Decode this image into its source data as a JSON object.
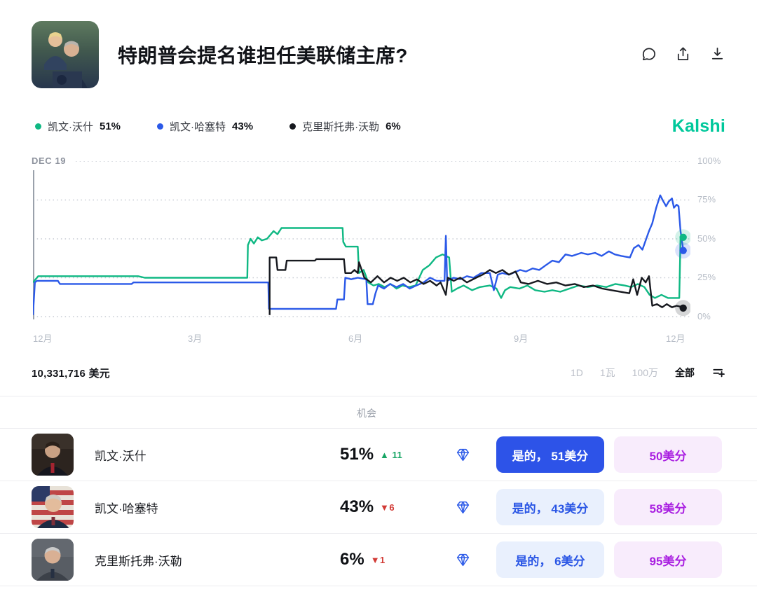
{
  "header": {
    "title": "特朗普会提名谁担任美联储主席?"
  },
  "brand": {
    "name": "Kalshi",
    "color": "#00c89b"
  },
  "legend": {
    "items": [
      {
        "name": "凯文·沃什",
        "value": "51%",
        "color": "#0fb883"
      },
      {
        "name": "凯文·哈塞特",
        "value": "43%",
        "color": "#2b59e8"
      },
      {
        "name": "克里斯托弗·沃勒",
        "value": "6%",
        "color": "#17191f"
      }
    ]
  },
  "chart_data": {
    "type": "line",
    "annotation": "DEC 19",
    "grid": "dotted horizontal",
    "legend_position": "top-left",
    "ylim": [
      0,
      100
    ],
    "y_ticks": [
      {
        "label": "0%",
        "value": 0
      },
      {
        "label": "25%",
        "value": 25
      },
      {
        "label": "50%",
        "value": 50
      },
      {
        "label": "75%",
        "value": 75
      },
      {
        "label": "100%",
        "value": 100
      }
    ],
    "x_ticks": [
      {
        "label": "12月",
        "pos": 0.4
      },
      {
        "label": "3月",
        "pos": 24.6
      },
      {
        "label": "6月",
        "pos": 49
      },
      {
        "label": "9月",
        "pos": 74.2
      },
      {
        "label": "12月",
        "pos": 97.5
      }
    ],
    "series": [
      {
        "name": "凯文·沃什",
        "color": "#0fb883",
        "points": [
          [
            0,
            22
          ],
          [
            0.8,
            26
          ],
          [
            8,
            26
          ],
          [
            16,
            26
          ],
          [
            17,
            25
          ],
          [
            24.6,
            25
          ],
          [
            28,
            25
          ],
          [
            32.6,
            25
          ],
          [
            32.7,
            46
          ],
          [
            33.1,
            50
          ],
          [
            33.6,
            47
          ],
          [
            34.2,
            51
          ],
          [
            34.8,
            49
          ],
          [
            35.6,
            50
          ],
          [
            36.6,
            55
          ],
          [
            37.2,
            53
          ],
          [
            37.8,
            57
          ],
          [
            40,
            57
          ],
          [
            43,
            57
          ],
          [
            46,
            57
          ],
          [
            47.1,
            57
          ],
          [
            47.2,
            48
          ],
          [
            47.6,
            45
          ],
          [
            49.4,
            45
          ],
          [
            49.6,
            28
          ],
          [
            50.3,
            30
          ],
          [
            51,
            22
          ],
          [
            51.8,
            20
          ],
          [
            52.6,
            21
          ],
          [
            53.5,
            19
          ],
          [
            54.4,
            21
          ],
          [
            55.3,
            18
          ],
          [
            56.2,
            20
          ],
          [
            57.2,
            19
          ],
          [
            58.2,
            20
          ],
          [
            59.3,
            30
          ],
          [
            60.3,
            33
          ],
          [
            61.3,
            38
          ],
          [
            62.3,
            40
          ],
          [
            63.3,
            38
          ],
          [
            63.7,
            16
          ],
          [
            64.5,
            18
          ],
          [
            65.5,
            20
          ],
          [
            66.8,
            17
          ],
          [
            68,
            19
          ],
          [
            69.5,
            20
          ],
          [
            70.5,
            18
          ],
          [
            71.2,
            12
          ],
          [
            71.8,
            17
          ],
          [
            72.6,
            19
          ],
          [
            74,
            18
          ],
          [
            75.2,
            20
          ],
          [
            76.4,
            17
          ],
          [
            77.8,
            16
          ],
          [
            79,
            17
          ],
          [
            80.2,
            16
          ],
          [
            81.6,
            18
          ],
          [
            83,
            20
          ],
          [
            84.4,
            19
          ],
          [
            85.8,
            20
          ],
          [
            87.2,
            19
          ],
          [
            88.6,
            21
          ],
          [
            90,
            20
          ],
          [
            91,
            19
          ],
          [
            92,
            21
          ],
          [
            93,
            19
          ],
          [
            93.8,
            14
          ],
          [
            94.6,
            12
          ],
          [
            95.6,
            14
          ],
          [
            96.6,
            12
          ],
          [
            98.3,
            12
          ],
          [
            98.5,
            51
          ],
          [
            98.9,
            51
          ]
        ]
      },
      {
        "name": "凯文·哈塞特",
        "color": "#2b59e8",
        "points": [
          [
            0,
            1
          ],
          [
            0.3,
            22
          ],
          [
            0.6,
            23
          ],
          [
            3.8,
            23
          ],
          [
            4.1,
            21
          ],
          [
            15,
            21
          ],
          [
            15.3,
            22
          ],
          [
            24.6,
            22
          ],
          [
            32,
            22
          ],
          [
            35.8,
            22
          ],
          [
            35.9,
            5
          ],
          [
            40,
            5
          ],
          [
            44,
            5
          ],
          [
            46.1,
            5
          ],
          [
            46.3,
            11
          ],
          [
            47.3,
            11
          ],
          [
            47.5,
            25
          ],
          [
            48.4,
            24
          ],
          [
            49.4,
            25
          ],
          [
            50.7,
            24
          ],
          [
            50.9,
            8
          ],
          [
            51.7,
            8
          ],
          [
            52.1,
            15
          ],
          [
            52.5,
            20
          ],
          [
            53.4,
            18
          ],
          [
            54.3,
            21
          ],
          [
            55.3,
            19
          ],
          [
            56.3,
            21
          ],
          [
            57.3,
            18
          ],
          [
            58.3,
            20
          ],
          [
            59.4,
            22
          ],
          [
            60.4,
            25
          ],
          [
            61.4,
            23
          ],
          [
            62.6,
            23
          ],
          [
            62.8,
            52
          ],
          [
            63,
            23
          ],
          [
            64,
            25
          ],
          [
            65,
            24
          ],
          [
            66,
            26
          ],
          [
            67,
            25
          ],
          [
            68.2,
            28
          ],
          [
            69.5,
            28
          ],
          [
            70.1,
            17
          ],
          [
            70.7,
            27
          ],
          [
            71.4,
            28
          ],
          [
            72.4,
            27
          ],
          [
            74.1,
            30
          ],
          [
            75,
            29
          ],
          [
            76,
            31
          ],
          [
            77,
            30
          ],
          [
            78,
            33
          ],
          [
            79,
            36
          ],
          [
            80,
            35
          ],
          [
            81,
            40
          ],
          [
            82,
            39
          ],
          [
            83.4,
            41
          ],
          [
            84.4,
            40
          ],
          [
            85.5,
            41
          ],
          [
            86.5,
            39
          ],
          [
            87.6,
            42
          ],
          [
            88.5,
            40
          ],
          [
            89.5,
            39
          ],
          [
            90.8,
            38
          ],
          [
            91.4,
            44
          ],
          [
            92.1,
            46
          ],
          [
            92.7,
            43
          ],
          [
            93.7,
            55
          ],
          [
            94.2,
            60
          ],
          [
            94.8,
            70
          ],
          [
            95.4,
            78
          ],
          [
            95.9,
            74
          ],
          [
            96.3,
            71
          ],
          [
            96.7,
            74
          ],
          [
            97.2,
            76
          ],
          [
            97.5,
            70
          ],
          [
            97.9,
            72
          ],
          [
            98.2,
            71
          ],
          [
            98.5,
            55
          ],
          [
            98.9,
            43
          ]
        ]
      },
      {
        "name": "克里斯托弗·沃勒",
        "color": "#17191f",
        "points": [
          [
            36,
            1
          ],
          [
            36,
            38
          ],
          [
            37,
            38
          ],
          [
            37.2,
            30
          ],
          [
            38.4,
            30
          ],
          [
            38.6,
            36
          ],
          [
            42.9,
            36
          ],
          [
            43.1,
            37
          ],
          [
            47.3,
            37
          ],
          [
            47.5,
            28
          ],
          [
            48.4,
            28
          ],
          [
            48.9,
            30
          ],
          [
            49.4,
            28
          ],
          [
            49.6,
            35
          ],
          [
            50.4,
            25
          ],
          [
            51.4,
            22
          ],
          [
            52.4,
            26
          ],
          [
            53.4,
            22
          ],
          [
            54.4,
            25
          ],
          [
            55.4,
            23
          ],
          [
            56.4,
            25
          ],
          [
            57.4,
            22
          ],
          [
            58.4,
            24
          ],
          [
            59.4,
            21
          ],
          [
            60.4,
            23
          ],
          [
            61.4,
            20
          ],
          [
            62,
            22
          ],
          [
            62.8,
            14
          ],
          [
            63.1,
            25
          ],
          [
            64,
            23
          ],
          [
            65,
            25
          ],
          [
            66,
            22
          ],
          [
            67.4,
            25
          ],
          [
            68.4,
            27
          ],
          [
            69.5,
            30
          ],
          [
            70.4,
            28
          ],
          [
            71.4,
            30
          ],
          [
            72.4,
            27
          ],
          [
            73.4,
            29
          ],
          [
            74.2,
            22
          ],
          [
            75.4,
            21
          ],
          [
            76.8,
            23
          ],
          [
            78.2,
            21
          ],
          [
            79.6,
            22
          ],
          [
            81,
            20
          ],
          [
            82.4,
            21
          ],
          [
            83.8,
            19
          ],
          [
            85.2,
            20
          ],
          [
            86.6,
            18
          ],
          [
            88,
            17
          ],
          [
            90.7,
            15
          ],
          [
            91.3,
            24
          ],
          [
            91.9,
            14
          ],
          [
            92.6,
            25
          ],
          [
            93.2,
            22
          ],
          [
            93.7,
            26
          ],
          [
            94.2,
            7
          ],
          [
            94.9,
            8
          ],
          [
            95.7,
            6
          ],
          [
            96.4,
            8
          ],
          [
            97.2,
            6
          ],
          [
            97.9,
            7
          ],
          [
            98.9,
            6
          ]
        ]
      }
    ],
    "end_markers": [
      {
        "x": 98.9,
        "y": 51,
        "color": "#0fb883"
      },
      {
        "x": 98.9,
        "y": 42.5,
        "color": "#2b59e8"
      },
      {
        "x": 98.9,
        "y": 5.5,
        "color": "#17191f"
      }
    ]
  },
  "volume": {
    "label": "10,331,716 美元"
  },
  "range": {
    "options": [
      {
        "label": "1D"
      },
      {
        "label": "1瓦"
      },
      {
        "label": "100万"
      },
      {
        "label": "全部",
        "selected": true
      }
    ]
  },
  "table": {
    "chance_header": "机会",
    "rows": [
      {
        "name": "凯文·沃什",
        "chance": "51%",
        "delta": "▲ 11",
        "delta_class": "delta up",
        "yes_label": "是的， 51美分",
        "no_label": "50美分"
      },
      {
        "name": "凯文·哈塞特",
        "chance": "43%",
        "delta": "▼6",
        "delta_class": "delta down",
        "yes_label": "是的， 43美分",
        "no_label": "58美分"
      },
      {
        "name": "克里斯托弗·沃勒",
        "chance": "6%",
        "delta": "▼1",
        "delta_class": "delta down",
        "yes_label": "是的， 6美分",
        "no_label": "95美分"
      }
    ]
  },
  "colors": {
    "accent_blue": "#2d53e8",
    "yes_light_bg": "#e9f0fd",
    "no_bg": "#f8ecfc",
    "no_text": "#a91fe1",
    "up_green": "#16a564",
    "down_red": "#d23a35"
  }
}
